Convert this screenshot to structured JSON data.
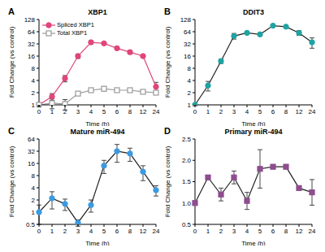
{
  "chart_data": [
    {
      "type": "line",
      "panel_label": "A",
      "title": "XBP1",
      "x_label": "Time (h)",
      "y_label": "Fold Change (vs control)",
      "categories": [
        "0",
        "1",
        "2",
        "3",
        "4",
        "5",
        "6",
        "8",
        "12",
        "24"
      ],
      "log": "y",
      "ylim": [
        1,
        128
      ],
      "yticks": [
        1,
        2,
        4,
        8,
        16,
        32,
        64,
        128
      ],
      "grid": false,
      "legend": "upper left",
      "series": [
        {
          "name": "Spliced XBP1",
          "color": "#e0457b",
          "marker": "circle",
          "values": [
            1,
            1.6,
            4.5,
            16,
            35,
            33,
            25,
            20,
            16,
            2.8
          ],
          "errors": [
            0.1,
            0.3,
            0.8,
            2,
            3,
            2,
            2,
            2,
            1,
            0.8
          ]
        },
        {
          "name": "Total XBP1",
          "color": "#9a9a9a",
          "marker": "open_square",
          "values": [
            1,
            1.1,
            1.05,
            1.9,
            2.3,
            2.5,
            2.3,
            2.3,
            2.1,
            2
          ],
          "errors": [
            0.1,
            0.3,
            0.3,
            0.2,
            0.2,
            0.3,
            0.2,
            0.2,
            0.2,
            0.1
          ]
        }
      ]
    },
    {
      "type": "line",
      "panel_label": "B",
      "title": "DDIT3",
      "x_label": "Time (h)",
      "y_label": "Fold Change (vs control)",
      "categories": [
        "0",
        "1",
        "2",
        "3",
        "4",
        "5",
        "6",
        "8",
        "12",
        "24"
      ],
      "log": "y",
      "ylim": [
        1,
        128
      ],
      "yticks": [
        1,
        2,
        4,
        8,
        16,
        32,
        64,
        128
      ],
      "grid": false,
      "series": [
        {
          "color": "#1fa3a3",
          "marker": "circle",
          "values": [
            1,
            3,
            12,
            50,
            60,
            55,
            90,
            85,
            60,
            35
          ],
          "errors": [
            0.05,
            0.8,
            1.5,
            8,
            5,
            5,
            5,
            5,
            8,
            10
          ]
        }
      ]
    },
    {
      "type": "line",
      "panel_label": "C",
      "title": "Mature miR-494",
      "x_label": "Time (h)",
      "y_label": "Fold Change (vs control)",
      "categories": [
        "0",
        "1",
        "2",
        "3",
        "4",
        "5",
        "6",
        "8",
        "12",
        "24"
      ],
      "log": "y",
      "ylim": [
        0.5,
        64
      ],
      "yticks": [
        0.5,
        1,
        2,
        4,
        8,
        16,
        32,
        64
      ],
      "grid": false,
      "series": [
        {
          "color": "#3b9ae1",
          "marker": "circle",
          "values": [
            1,
            2.2,
            1.6,
            0.55,
            1.5,
            14,
            32,
            28,
            10,
            3.5
          ],
          "errors": [
            0.5,
            1,
            0.5,
            0.1,
            0.5,
            5,
            15,
            10,
            4,
            1
          ]
        }
      ]
    },
    {
      "type": "line",
      "panel_label": "D",
      "title": "Primary miR-494",
      "x_label": "Time (h)",
      "y_label": "Fold Change (vs control)",
      "categories": [
        "0",
        "1",
        "2",
        "3",
        "4",
        "5",
        "6",
        "8",
        "12",
        "24"
      ],
      "ylim": [
        0.5,
        2.5
      ],
      "yticks": [
        0.5,
        {
          "value": 1,
          "label": "1.0"
        },
        1.5,
        {
          "value": 2,
          "label": "2.0"
        },
        2.5
      ],
      "grid": false,
      "series": [
        {
          "color": "#8e4d8e",
          "marker": "square",
          "values": [
            1,
            1.6,
            1.2,
            1.6,
            1.05,
            1.8,
            1.85,
            1.85,
            1.35,
            1.25
          ],
          "errors": [
            0.02,
            0.05,
            0.15,
            0.15,
            0.2,
            0.45,
            0.05,
            0.05,
            0.03,
            0.3
          ]
        }
      ]
    }
  ]
}
